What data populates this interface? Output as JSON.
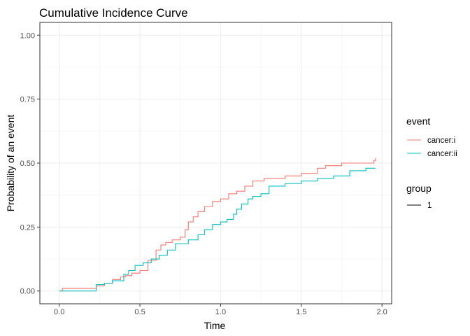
{
  "chart_data": {
    "type": "line",
    "title": "Cumulative Incidence Curve",
    "xlabel": "Time",
    "ylabel": "Probability of an event",
    "xlim": [
      -0.12,
      2.06
    ],
    "ylim": [
      -0.05,
      1.05
    ],
    "x_ticks": [
      0.0,
      0.5,
      1.0,
      1.5,
      2.0
    ],
    "x_tick_labels": [
      "0.0",
      "0.5",
      "1.0",
      "1.5",
      "2.0"
    ],
    "y_ticks": [
      0.0,
      0.25,
      0.5,
      0.75,
      1.0
    ],
    "y_tick_labels": [
      "0.00",
      "0.25",
      "0.50",
      "0.75",
      "1.00"
    ],
    "grid": true,
    "step": true,
    "legend": {
      "position": "right",
      "event_title": "event",
      "group_title": "group",
      "group_label": "1"
    },
    "series": [
      {
        "name": "cancer:i",
        "color": "#F8766D",
        "points": [
          [
            0.0,
            0.0
          ],
          [
            0.02,
            0.01
          ],
          [
            0.12,
            0.01
          ],
          [
            0.23,
            0.02
          ],
          [
            0.28,
            0.03
          ],
          [
            0.33,
            0.045
          ],
          [
            0.38,
            0.055
          ],
          [
            0.41,
            0.06
          ],
          [
            0.45,
            0.07
          ],
          [
            0.5,
            0.08
          ],
          [
            0.55,
            0.12
          ],
          [
            0.6,
            0.16
          ],
          [
            0.63,
            0.18
          ],
          [
            0.66,
            0.19
          ],
          [
            0.7,
            0.2
          ],
          [
            0.75,
            0.21
          ],
          [
            0.78,
            0.24
          ],
          [
            0.8,
            0.27
          ],
          [
            0.83,
            0.29
          ],
          [
            0.86,
            0.31
          ],
          [
            0.9,
            0.33
          ],
          [
            0.95,
            0.35
          ],
          [
            1.0,
            0.36
          ],
          [
            1.05,
            0.38
          ],
          [
            1.1,
            0.39
          ],
          [
            1.15,
            0.41
          ],
          [
            1.2,
            0.43
          ],
          [
            1.27,
            0.44
          ],
          [
            1.4,
            0.45
          ],
          [
            1.5,
            0.46
          ],
          [
            1.6,
            0.48
          ],
          [
            1.65,
            0.49
          ],
          [
            1.75,
            0.5
          ],
          [
            1.95,
            0.51
          ],
          [
            1.96,
            0.52
          ]
        ]
      },
      {
        "name": "cancer:ii",
        "color": "#00BFC4",
        "points": [
          [
            0.0,
            0.0
          ],
          [
            0.23,
            0.025
          ],
          [
            0.28,
            0.03
          ],
          [
            0.33,
            0.04
          ],
          [
            0.4,
            0.065
          ],
          [
            0.43,
            0.08
          ],
          [
            0.47,
            0.1
          ],
          [
            0.52,
            0.11
          ],
          [
            0.57,
            0.125
          ],
          [
            0.62,
            0.14
          ],
          [
            0.67,
            0.16
          ],
          [
            0.72,
            0.185
          ],
          [
            0.8,
            0.2
          ],
          [
            0.86,
            0.22
          ],
          [
            0.9,
            0.24
          ],
          [
            0.95,
            0.26
          ],
          [
            1.0,
            0.27
          ],
          [
            1.04,
            0.28
          ],
          [
            1.08,
            0.3
          ],
          [
            1.1,
            0.32
          ],
          [
            1.13,
            0.34
          ],
          [
            1.17,
            0.36
          ],
          [
            1.2,
            0.37
          ],
          [
            1.25,
            0.38
          ],
          [
            1.3,
            0.4
          ],
          [
            1.3,
            0.41
          ],
          [
            1.4,
            0.42
          ],
          [
            1.5,
            0.43
          ],
          [
            1.6,
            0.44
          ],
          [
            1.7,
            0.45
          ],
          [
            1.8,
            0.47
          ],
          [
            1.9,
            0.48
          ],
          [
            1.96,
            0.48
          ]
        ]
      }
    ]
  }
}
